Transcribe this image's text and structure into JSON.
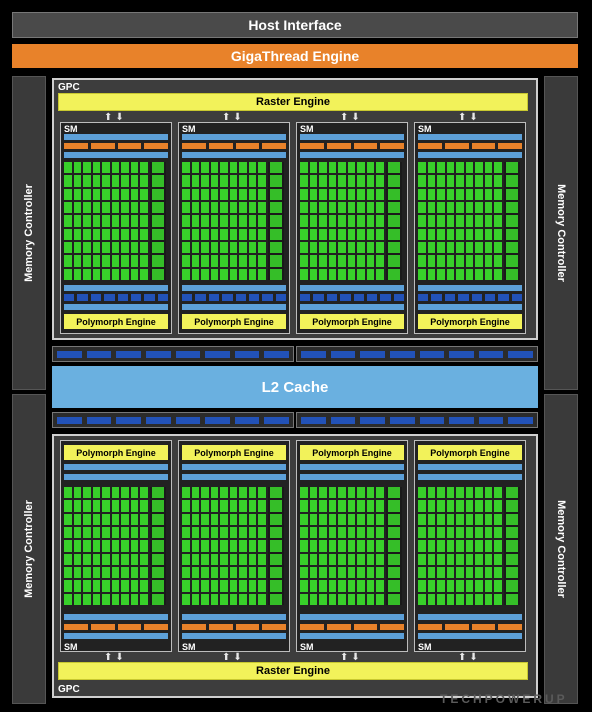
{
  "host_interface": "Host Interface",
  "gigathread": "GigaThread Engine",
  "memory_controller": "Memory Controller",
  "gpc_label": "GPC",
  "raster_engine": "Raster Engine",
  "sm_label": "SM",
  "polymorph_engine": "Polymorph Engine",
  "l2_cache": "L2 Cache",
  "watermark": "TECHPOWERUP",
  "colors": {
    "host": "#4a4a4a",
    "gigathread": "#e8822a",
    "raster": "#f2f25a",
    "core": "#38d02a",
    "l1_bar": "#5da0d8",
    "unit": "#2252b8",
    "l2": "#6ab0e0"
  }
}
